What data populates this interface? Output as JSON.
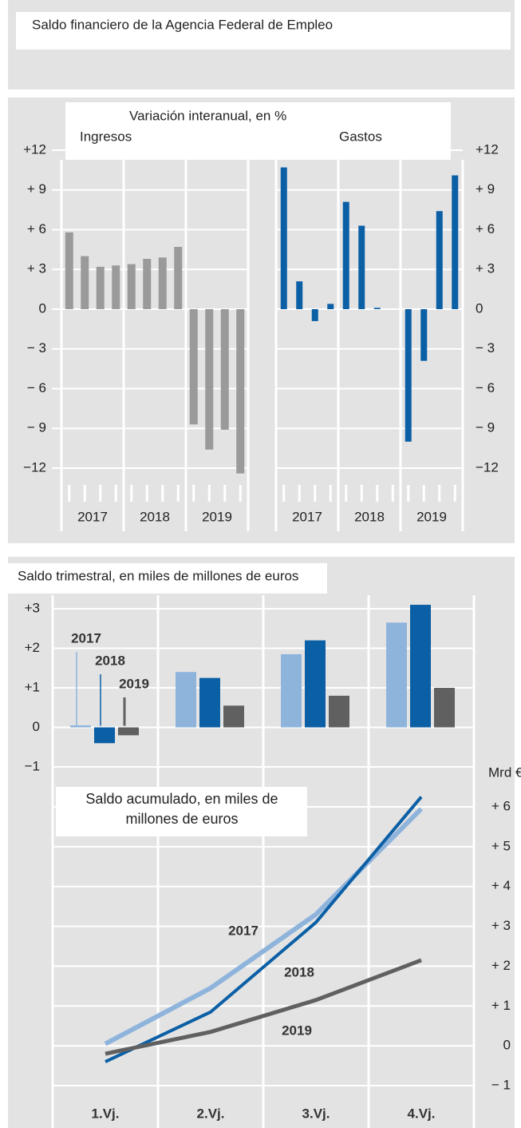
{
  "title": "Saldo financiero de la Agencia Federal de Empleo",
  "chart_data": [
    {
      "type": "bar",
      "subtitle": "Variación interanual, en %",
      "title": "Ingresos",
      "groups": [
        "2017",
        "2018",
        "2019"
      ],
      "values": [
        [
          5.8,
          4.0,
          3.2,
          3.3
        ],
        [
          3.4,
          3.8,
          3.9,
          4.7
        ],
        [
          -8.7,
          -10.6,
          -9.1,
          -12.4
        ]
      ],
      "color": "#9a9a9a",
      "ylim": [
        -12,
        12
      ],
      "yticks": [
        {
          "value": 12,
          "label": "+12"
        },
        {
          "value": 9,
          "label": "+ 9"
        },
        {
          "value": 6,
          "label": "+ 6"
        },
        {
          "value": 3,
          "label": "+ 3"
        },
        0,
        {
          "value": -3,
          "label": "− 3"
        },
        {
          "value": -6,
          "label": "− 6"
        },
        {
          "value": -9,
          "label": "− 9"
        },
        {
          "value": -12,
          "label": "−12"
        }
      ],
      "grid": true
    },
    {
      "type": "bar",
      "title": "Gastos",
      "groups": [
        "2017",
        "2018",
        "2019"
      ],
      "values": [
        [
          10.7,
          2.1,
          -0.9,
          0.4
        ],
        [
          8.1,
          6.3,
          0.1,
          0
        ],
        [
          -10.0,
          -3.9,
          7.4,
          10.1
        ]
      ],
      "color": "#0b5fa5",
      "ylim": [
        -12,
        12
      ],
      "yticks": [
        {
          "value": 12,
          "label": "+12"
        },
        {
          "value": 9,
          "label": "+ 9"
        },
        {
          "value": 6,
          "label": "+ 6"
        },
        {
          "value": 3,
          "label": "+ 3"
        },
        0,
        {
          "value": -3,
          "label": "− 3"
        },
        {
          "value": -6,
          "label": "− 6"
        },
        {
          "value": -9,
          "label": "− 9"
        },
        {
          "value": -12,
          "label": "−12"
        }
      ],
      "grid": true
    },
    {
      "type": "grouped_bar",
      "title": "Saldo trimestral, en miles de millones de euros",
      "categories": [
        "1.Vj.",
        "2.Vj.",
        "3.Vj.",
        "4.Vj."
      ],
      "series": [
        {
          "name": "2017",
          "color": "#8fb4dc",
          "values": [
            0.05,
            1.4,
            1.85,
            2.65
          ]
        },
        {
          "name": "2018",
          "color": "#0b5fa5",
          "values": [
            -0.4,
            1.25,
            2.2,
            3.1
          ]
        },
        {
          "name": "2019",
          "color": "#606060",
          "values": [
            -0.2,
            0.55,
            0.8,
            1.0
          ]
        }
      ],
      "ylim": [
        -1,
        3
      ],
      "yticks": [
        {
          "value": 3,
          "label": "+3"
        },
        {
          "value": 2,
          "label": "+2"
        },
        {
          "value": 1,
          "label": "+1"
        },
        0,
        {
          "value": -1,
          "label": "−1"
        }
      ],
      "grid": true
    },
    {
      "type": "line",
      "title": "Saldo acumulado, en miles de millones de euros",
      "y_label": "Mrd €",
      "series": [
        {
          "name": "2017",
          "color": "#8fb4dc",
          "values": [
            0.05,
            1.45,
            3.3,
            5.95
          ]
        },
        {
          "name": "2018",
          "color": "#0b5fa5",
          "values": [
            -0.4,
            0.85,
            3.1,
            6.25
          ]
        },
        {
          "name": "2019",
          "color": "#606060",
          "values": [
            -0.2,
            0.35,
            1.15,
            2.15
          ]
        }
      ],
      "ylim": [
        -1,
        6
      ],
      "yticks": [
        {
          "value": 6,
          "label": "+ 6"
        },
        {
          "value": 5,
          "label": "+ 5"
        },
        {
          "value": 4,
          "label": "+ 4"
        },
        {
          "value": 3,
          "label": "+ 3"
        },
        {
          "value": 2,
          "label": "+ 2"
        },
        {
          "value": 1,
          "label": "+ 1"
        },
        0,
        {
          "value": -1,
          "label": "− 1"
        }
      ],
      "grid": true
    }
  ]
}
